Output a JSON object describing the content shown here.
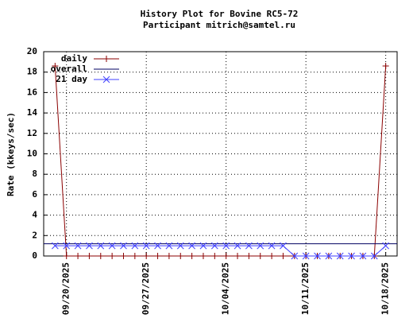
{
  "chart_data": {
    "type": "line",
    "title": "History Plot for Bovine RC5-72",
    "subtitle": "Participant mitrich@samtel.ru",
    "y_label": "Rate (kkeys/sec)",
    "x": [
      "09/19/2025",
      "09/20/2025",
      "09/21/2025",
      "09/22/2025",
      "09/23/2025",
      "09/24/2025",
      "09/25/2025",
      "09/26/2025",
      "09/27/2025",
      "09/28/2025",
      "09/29/2025",
      "09/30/2025",
      "10/01/2025",
      "10/02/2025",
      "10/03/2025",
      "10/04/2025",
      "10/05/2025",
      "10/06/2025",
      "10/07/2025",
      "10/08/2025",
      "10/09/2025",
      "10/10/2025",
      "10/11/2025",
      "10/12/2025",
      "10/13/2025",
      "10/14/2025",
      "10/15/2025",
      "10/16/2025",
      "10/17/2025",
      "10/18/2025"
    ],
    "series": [
      {
        "name": "daily",
        "color": "#8b0000",
        "marker": "plus",
        "values": [
          18.6,
          0,
          0,
          0,
          0,
          0,
          0,
          0,
          0,
          0,
          0,
          0,
          0,
          0,
          0,
          0,
          0,
          0,
          0,
          0,
          0,
          0,
          0,
          0,
          0,
          0,
          0,
          0,
          0,
          18.6
        ]
      },
      {
        "name": "overall",
        "color": "#000060",
        "value": 1.2
      },
      {
        "name": "21 day",
        "color": "#4040ff",
        "marker": "cross",
        "values": [
          1,
          1,
          1,
          1,
          1,
          1,
          1,
          1,
          1,
          1,
          1,
          1,
          1,
          1,
          1,
          1,
          1,
          1,
          1,
          1,
          1,
          0,
          0,
          0,
          0,
          0,
          0,
          0,
          0,
          1
        ]
      }
    ],
    "xlim": [
      "09/18/2025",
      "10/19/2025"
    ],
    "xticks": [
      "09/20/2025",
      "09/27/2025",
      "10/04/2025",
      "10/11/2025",
      "10/18/2025"
    ],
    "ylim": [
      0,
      20
    ],
    "yticks": [
      0,
      2,
      4,
      6,
      8,
      10,
      12,
      14,
      16,
      18,
      20
    ],
    "grid": true,
    "legend": "top-left"
  }
}
